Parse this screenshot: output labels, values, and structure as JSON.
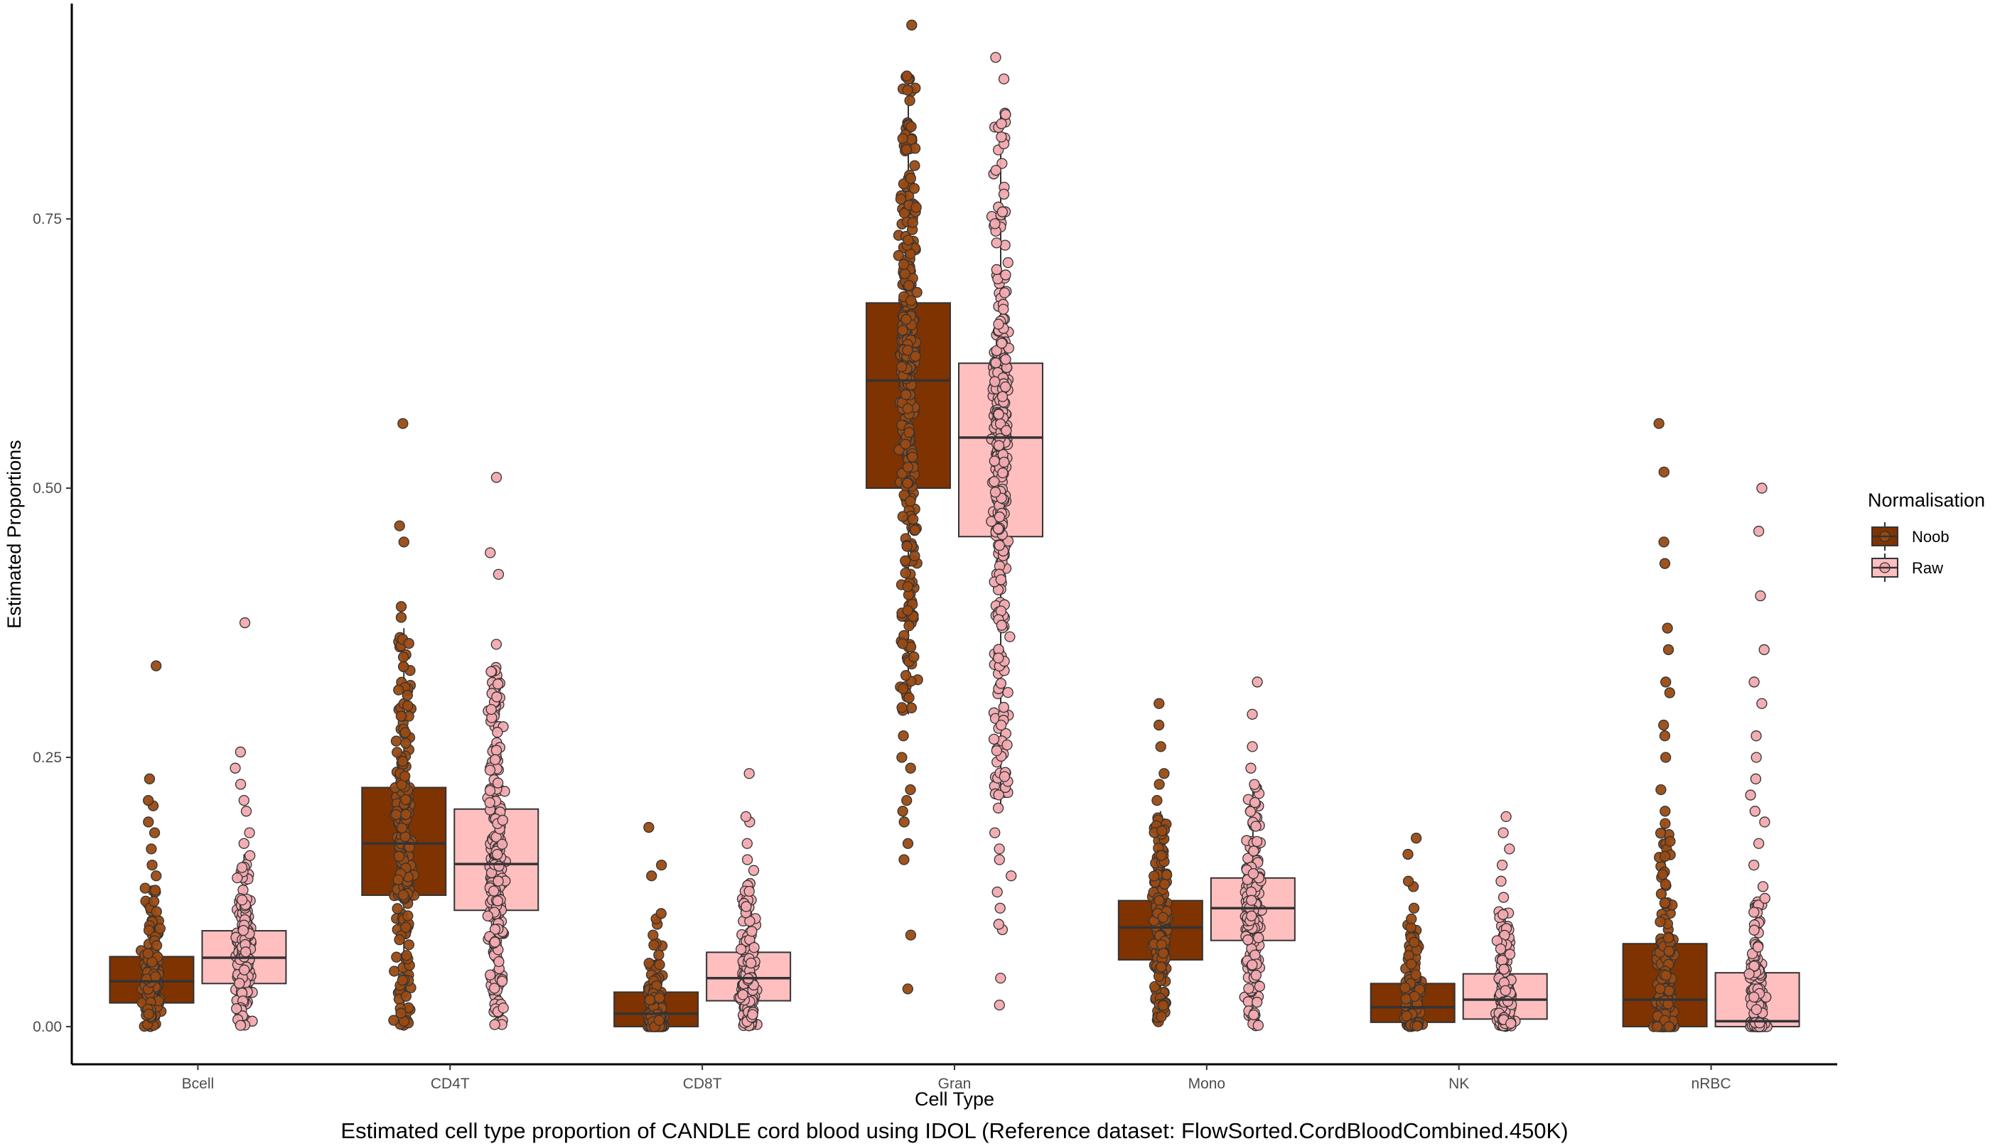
{
  "chart_data": {
    "type": "boxplot",
    "xlabel": "Cell Type",
    "ylabel": "Estimated Proportions",
    "caption": "Estimated cell type proportion of CANDLE cord blood using IDOL (Reference dataset: FlowSorted.CordBloodCombined.450K)",
    "ylim": [
      -0.035,
      0.95
    ],
    "yticks": [
      0.0,
      0.25,
      0.5,
      0.75
    ],
    "ytick_labels": [
      "0.00",
      "0.25",
      "0.50",
      "0.75"
    ],
    "grid": false,
    "legend": {
      "title": "Normalisation",
      "position": "right"
    },
    "categories": [
      "Bcell",
      "CD4T",
      "CD8T",
      "Gran",
      "Mono",
      "NK",
      "nRBC"
    ],
    "series": [
      {
        "name": "Noob",
        "color": "#7f3300",
        "boxes": [
          {
            "min": 0.0,
            "q1": 0.022,
            "median": 0.042,
            "q3": 0.065,
            "max": 0.13,
            "outliers": [
              0.14,
              0.15,
              0.165,
              0.18,
              0.19,
              0.205,
              0.21,
              0.23,
              0.335
            ]
          },
          {
            "min": 0.0,
            "q1": 0.122,
            "median": 0.17,
            "q3": 0.222,
            "max": 0.37,
            "outliers": [
              0.38,
              0.39,
              0.45,
              0.465,
              0.56
            ]
          },
          {
            "min": 0.0,
            "q1": 0.0,
            "median": 0.012,
            "q3": 0.032,
            "max": 0.078,
            "outliers": [
              0.085,
              0.095,
              0.1,
              0.105,
              0.14,
              0.15,
              0.185
            ]
          },
          {
            "min": 0.29,
            "q1": 0.5,
            "median": 0.6,
            "q3": 0.672,
            "max": 0.885,
            "outliers": [
              0.035,
              0.085,
              0.155,
              0.17,
              0.19,
              0.2,
              0.21,
              0.22,
              0.24,
              0.25,
              0.27,
              0.93
            ]
          },
          {
            "min": 0.0,
            "q1": 0.062,
            "median": 0.092,
            "q3": 0.117,
            "max": 0.2,
            "outliers": [
              0.21,
              0.225,
              0.235,
              0.26,
              0.28,
              0.3
            ]
          },
          {
            "min": 0.0,
            "q1": 0.004,
            "median": 0.018,
            "q3": 0.04,
            "max": 0.095,
            "outliers": [
              0.1,
              0.11,
              0.13,
              0.135,
              0.16,
              0.175
            ]
          },
          {
            "min": 0.0,
            "q1": 0.0,
            "median": 0.025,
            "q3": 0.077,
            "max": 0.19,
            "outliers": [
              0.2,
              0.22,
              0.25,
              0.27,
              0.28,
              0.31,
              0.32,
              0.35,
              0.37,
              0.43,
              0.45,
              0.515,
              0.56
            ]
          }
        ]
      },
      {
        "name": "Raw",
        "color": "#ffbfbf",
        "boxes": [
          {
            "min": 0.0,
            "q1": 0.04,
            "median": 0.064,
            "q3": 0.089,
            "max": 0.16,
            "outliers": [
              0.17,
              0.18,
              0.2,
              0.21,
              0.225,
              0.24,
              0.255,
              0.375
            ]
          },
          {
            "min": 0.0,
            "q1": 0.108,
            "median": 0.151,
            "q3": 0.202,
            "max": 0.335,
            "outliers": [
              0.355,
              0.42,
              0.44,
              0.51
            ]
          },
          {
            "min": 0.0,
            "q1": 0.024,
            "median": 0.045,
            "q3": 0.069,
            "max": 0.135,
            "outliers": [
              0.145,
              0.155,
              0.17,
              0.19,
              0.195,
              0.235
            ]
          },
          {
            "min": 0.2,
            "q1": 0.455,
            "median": 0.547,
            "q3": 0.616,
            "max": 0.85,
            "outliers": [
              0.02,
              0.045,
              0.09,
              0.095,
              0.11,
              0.125,
              0.14,
              0.155,
              0.165,
              0.18,
              0.88,
              0.9
            ]
          },
          {
            "min": 0.0,
            "q1": 0.08,
            "median": 0.11,
            "q3": 0.138,
            "max": 0.225,
            "outliers": [
              0.24,
              0.26,
              0.29,
              0.32
            ]
          },
          {
            "min": 0.0,
            "q1": 0.007,
            "median": 0.025,
            "q3": 0.049,
            "max": 0.11,
            "outliers": [
              0.12,
              0.135,
              0.15,
              0.165,
              0.18,
              0.195
            ]
          },
          {
            "min": 0.0,
            "q1": 0.0,
            "median": 0.005,
            "q3": 0.05,
            "max": 0.12,
            "outliers": [
              0.13,
              0.15,
              0.17,
              0.19,
              0.2,
              0.215,
              0.23,
              0.25,
              0.27,
              0.3,
              0.32,
              0.35,
              0.4,
              0.46,
              0.5
            ]
          }
        ]
      }
    ]
  }
}
